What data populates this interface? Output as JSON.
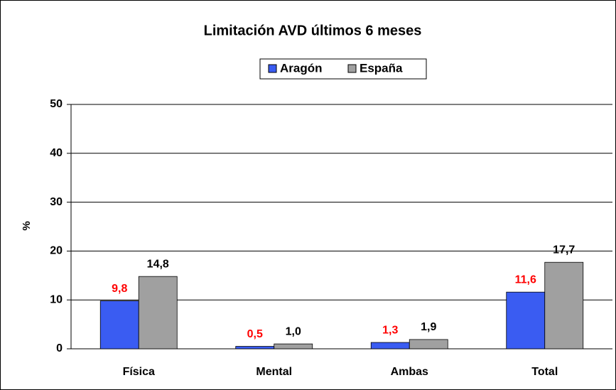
{
  "chart_data": {
    "type": "bar",
    "title": "Limitación AVD últimos 6 meses",
    "y_label": "%",
    "categories": [
      "Física",
      "Mental",
      "Ambas",
      "Total"
    ],
    "series": [
      {
        "name": "Aragón",
        "color": "#3a5cf2",
        "label_color": "#ff0000",
        "values": [
          9.8,
          0.5,
          1.3,
          11.6
        ],
        "value_labels": [
          "9,8",
          "0,5",
          "1,3",
          "11,6"
        ]
      },
      {
        "name": "España",
        "color": "#a0a0a0",
        "label_color": "#000000",
        "values": [
          14.8,
          1.0,
          1.9,
          17.7
        ],
        "value_labels": [
          "14,8",
          "1,0",
          "1,9",
          "17,7"
        ]
      }
    ],
    "ylim": [
      0,
      50
    ],
    "yticks": [
      0,
      10,
      20,
      30,
      40,
      50
    ],
    "grid": true,
    "legend": "top"
  }
}
